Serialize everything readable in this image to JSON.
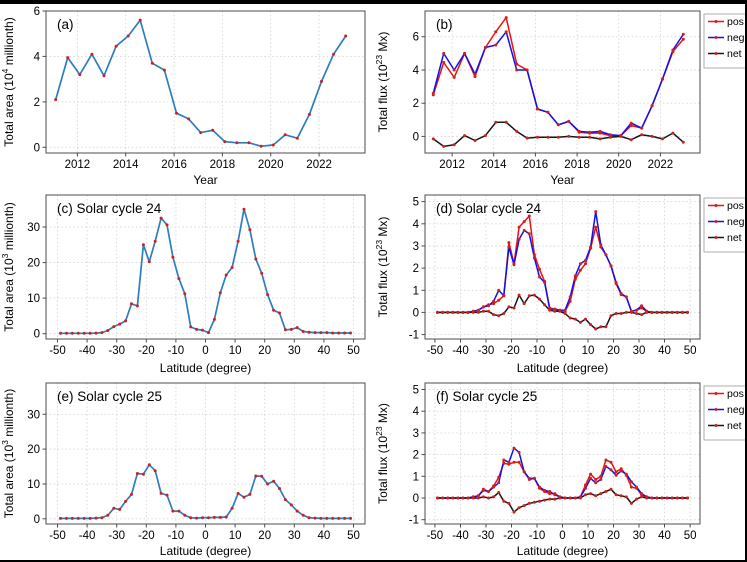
{
  "figure": {
    "description": "Six-panel solar activity figure: total sunspot area and total magnetic flux versus year and versus latitude for solar cycles 24 and 25",
    "background": "#ffffff",
    "border_color": "#000000"
  },
  "colors": {
    "area_line": "#2e7dbe",
    "pos": "#ee1111",
    "neg": "#1111ee",
    "net": "#161616",
    "marker": "#cf1f1f",
    "grid": "#d6d6d6",
    "spine": "#4d4d4d",
    "text": "#000000",
    "legend_border": "#999999"
  },
  "chart_data": [
    {
      "id": "a",
      "type": "line",
      "title": "(a)",
      "xlabel": "Year",
      "ylabel_parts": [
        {
          "text": "Total area (10"
        },
        {
          "text": "4",
          "sup": true
        },
        {
          "text": " millionth)"
        }
      ],
      "xlim": [
        2010.7,
        2023.9
      ],
      "ylim": [
        -0.25,
        6.0
      ],
      "xticks": [
        2012,
        2014,
        2016,
        2018,
        2020,
        2022
      ],
      "xtick_labels": [
        "2012",
        "2014",
        "2016",
        "2018",
        "2020",
        "2022"
      ],
      "yticks": [
        0,
        2,
        4,
        6
      ],
      "ytick_labels": [
        "0",
        "2",
        "4",
        "6"
      ],
      "legend": false,
      "x": [
        2011.1,
        2011.6,
        2012.1,
        2012.6,
        2013.1,
        2013.6,
        2014.1,
        2014.6,
        2015.1,
        2015.6,
        2016.1,
        2016.6,
        2017.1,
        2017.6,
        2018.1,
        2018.6,
        2019.1,
        2019.6,
        2020.1,
        2020.6,
        2021.1,
        2021.6,
        2022.1,
        2022.6,
        2023.1
      ],
      "series": [
        {
          "name": "area",
          "color": "#2e7dbe",
          "width": 1.7,
          "values": [
            2.1,
            3.95,
            3.2,
            4.1,
            3.15,
            4.45,
            4.9,
            5.6,
            3.7,
            3.4,
            1.5,
            1.25,
            0.65,
            0.75,
            0.25,
            0.2,
            0.2,
            0.05,
            0.1,
            0.55,
            0.4,
            1.45,
            2.9,
            4.1,
            4.9
          ]
        }
      ]
    },
    {
      "id": "b",
      "type": "line",
      "title": "(b)",
      "xlabel": "Year",
      "ylabel_parts": [
        {
          "text": "Total flux (10"
        },
        {
          "text": "23",
          "sup": true
        },
        {
          "text": " Mx)"
        }
      ],
      "xlim": [
        2010.7,
        2023.9
      ],
      "ylim": [
        -1.0,
        7.55
      ],
      "xticks": [
        2012,
        2014,
        2016,
        2018,
        2020,
        2022
      ],
      "xtick_labels": [
        "2012",
        "2014",
        "2016",
        "2018",
        "2020",
        "2022"
      ],
      "yticks": [
        0,
        2,
        4,
        6
      ],
      "ytick_labels": [
        "0",
        "2",
        "4",
        "6"
      ],
      "legend": true,
      "x": [
        2011.1,
        2011.6,
        2012.1,
        2012.6,
        2013.1,
        2013.6,
        2014.1,
        2014.6,
        2015.1,
        2015.6,
        2016.1,
        2016.6,
        2017.1,
        2017.6,
        2018.1,
        2018.6,
        2019.1,
        2019.6,
        2020.1,
        2020.6,
        2021.1,
        2021.6,
        2022.1,
        2022.6,
        2023.1
      ],
      "series": [
        {
          "name": "pos",
          "color": "#ee1111",
          "width": 1.5,
          "values": [
            2.5,
            4.45,
            3.55,
            5.0,
            3.6,
            5.35,
            6.3,
            7.15,
            4.35,
            4.0,
            1.65,
            1.45,
            0.7,
            0.9,
            0.25,
            0.2,
            0.2,
            0.05,
            0.05,
            0.65,
            0.5,
            1.85,
            3.45,
            5.1,
            5.85
          ]
        },
        {
          "name": "neg",
          "color": "#1111ee",
          "width": 1.5,
          "values": [
            2.6,
            5.0,
            4.0,
            5.0,
            3.75,
            5.35,
            5.5,
            6.3,
            4.0,
            4.0,
            1.65,
            1.45,
            0.7,
            0.9,
            0.3,
            0.25,
            0.3,
            0.1,
            0.05,
            0.8,
            0.5,
            1.85,
            3.45,
            5.2,
            6.15
          ]
        },
        {
          "name": "net",
          "color": "#161616",
          "width": 1.5,
          "values": [
            -0.15,
            -0.6,
            -0.5,
            0.05,
            -0.25,
            0.05,
            0.85,
            0.85,
            0.3,
            -0.1,
            -0.05,
            -0.05,
            -0.05,
            0.0,
            -0.05,
            -0.05,
            -0.15,
            -0.05,
            0.0,
            -0.2,
            0.1,
            0.0,
            -0.15,
            0.2,
            -0.35
          ]
        }
      ]
    },
    {
      "id": "c",
      "type": "line",
      "title": "(c) Solar cycle 24",
      "xlabel": "Latitude (degree)",
      "ylabel_parts": [
        {
          "text": "Total area (10"
        },
        {
          "text": "3",
          "sup": true
        },
        {
          "text": " millionth)"
        }
      ],
      "xlim": [
        -53.9,
        53.9
      ],
      "ylim": [
        -1.5,
        39
      ],
      "xticks": [
        -50,
        -40,
        -30,
        -20,
        -10,
        0,
        10,
        20,
        30,
        40,
        50
      ],
      "xtick_labels": [
        "-50",
        "-40",
        "-30",
        "-20",
        "-10",
        "0",
        "10",
        "20",
        "30",
        "40",
        "50"
      ],
      "yticks": [
        0,
        10,
        20,
        30
      ],
      "ytick_labels": [
        "0",
        "10",
        "20",
        "30"
      ],
      "legend": false,
      "x": [
        -49,
        -47,
        -45,
        -43,
        -41,
        -39,
        -37,
        -35,
        -33,
        -31,
        -29,
        -27,
        -25,
        -23,
        -21,
        -19,
        -17,
        -15,
        -13,
        -11,
        -9,
        -7,
        -5,
        -3,
        -1,
        1,
        3,
        5,
        7,
        9,
        11,
        13,
        15,
        17,
        19,
        21,
        23,
        25,
        27,
        29,
        31,
        33,
        35,
        37,
        39,
        41,
        43,
        45,
        47,
        49
      ],
      "series": [
        {
          "name": "area",
          "color": "#2e7dbe",
          "width": 1.7,
          "values": [
            0.1,
            0.1,
            0.1,
            0.1,
            0.1,
            0.1,
            0.15,
            0.3,
            0.9,
            2.0,
            2.7,
            3.6,
            8.4,
            7.8,
            25.0,
            20.2,
            26.0,
            32.5,
            30.6,
            21.5,
            15.5,
            11.2,
            1.9,
            1.2,
            1.0,
            0.3,
            4.0,
            11.5,
            16.5,
            18.6,
            26.0,
            35.0,
            29.2,
            21.0,
            17.0,
            11.0,
            6.6,
            5.8,
            1.1,
            1.2,
            1.7,
            0.6,
            0.4,
            0.3,
            0.3,
            0.3,
            0.2,
            0.2,
            0.2,
            0.2
          ]
        }
      ]
    },
    {
      "id": "d",
      "type": "line",
      "title": "(d) Solar cycle 24",
      "xlabel": "Latitude (degree)",
      "ylabel_parts": [
        {
          "text": "Total flux (10"
        },
        {
          "text": "23",
          "sup": true
        },
        {
          "text": " Mx)"
        }
      ],
      "xlim": [
        -53.9,
        53.9
      ],
      "ylim": [
        -1.2,
        5.3
      ],
      "xticks": [
        -50,
        -40,
        -30,
        -20,
        -10,
        0,
        10,
        20,
        30,
        40,
        50
      ],
      "xtick_labels": [
        "-50",
        "-40",
        "-30",
        "-20",
        "-10",
        "0",
        "10",
        "20",
        "30",
        "40",
        "50"
      ],
      "yticks": [
        -1,
        0,
        1,
        2,
        3,
        4,
        5
      ],
      "ytick_labels": [
        "-1",
        "0",
        "1",
        "2",
        "3",
        "4",
        "5"
      ],
      "legend": true,
      "x": [
        -49,
        -47,
        -45,
        -43,
        -41,
        -39,
        -37,
        -35,
        -33,
        -31,
        -29,
        -27,
        -25,
        -23,
        -21,
        -19,
        -17,
        -15,
        -13,
        -11,
        -9,
        -7,
        -5,
        -3,
        -1,
        1,
        3,
        5,
        7,
        9,
        11,
        13,
        15,
        17,
        19,
        21,
        23,
        25,
        27,
        29,
        31,
        33,
        35,
        37,
        39,
        41,
        43,
        45,
        47,
        49
      ],
      "series": [
        {
          "name": "pos",
          "color": "#ee1111",
          "width": 1.5,
          "values": [
            0,
            0,
            0,
            0,
            0,
            0,
            0,
            0.05,
            0.1,
            0.25,
            0.35,
            0.4,
            0.55,
            0.75,
            3.15,
            2.2,
            3.85,
            4.1,
            4.35,
            2.6,
            1.95,
            1.4,
            0.2,
            0.15,
            0.1,
            0.05,
            0.5,
            1.5,
            1.9,
            2.2,
            2.9,
            3.85,
            2.95,
            2.6,
            2.1,
            1.3,
            0.8,
            0.7,
            0.05,
            0.1,
            0.2,
            0.05,
            0,
            0,
            0,
            0,
            0,
            0,
            0,
            0
          ]
        },
        {
          "name": "neg",
          "color": "#1111ee",
          "width": 1.5,
          "values": [
            0,
            0,
            0,
            0,
            0,
            0,
            0,
            0.05,
            0.1,
            0.25,
            0.3,
            0.5,
            1.0,
            0.75,
            2.95,
            2.15,
            3.3,
            3.7,
            3.55,
            2.45,
            1.6,
            1.35,
            0.15,
            0.15,
            0.1,
            0.1,
            0.7,
            1.65,
            2.2,
            2.35,
            2.95,
            4.55,
            3.05,
            2.6,
            2.1,
            1.35,
            0.85,
            0.7,
            0.05,
            0.1,
            0.3,
            0.05,
            0,
            0,
            0,
            0,
            0,
            0,
            0,
            0
          ]
        },
        {
          "name": "net",
          "color": "#161616",
          "width": 1.5,
          "values": [
            0,
            0,
            0,
            0,
            0,
            0,
            0,
            0.0,
            0.0,
            0.05,
            0.05,
            -0.1,
            -0.15,
            -0.05,
            0.25,
            0.2,
            0.78,
            0.4,
            0.75,
            0.78,
            0.6,
            0.35,
            0.1,
            0.05,
            0.05,
            -0.05,
            -0.25,
            -0.3,
            -0.45,
            -0.3,
            -0.55,
            -0.75,
            -0.65,
            -0.65,
            -0.15,
            -0.05,
            -0.05,
            0.0,
            0.0,
            -0.05,
            -0.1,
            0.0,
            0,
            0,
            0,
            0,
            0,
            0,
            0,
            0
          ]
        }
      ]
    },
    {
      "id": "e",
      "type": "line",
      "title": "(e) Solar cycle 25",
      "xlabel": "Latitude (degree)",
      "ylabel_parts": [
        {
          "text": "Total area (10"
        },
        {
          "text": "3",
          "sup": true
        },
        {
          "text": " millionth)"
        }
      ],
      "xlim": [
        -53.9,
        53.9
      ],
      "ylim": [
        -1.5,
        39
      ],
      "xticks": [
        -50,
        -40,
        -30,
        -20,
        -10,
        0,
        10,
        20,
        30,
        40,
        50
      ],
      "xtick_labels": [
        "-50",
        "-40",
        "-30",
        "-20",
        "-10",
        "0",
        "10",
        "20",
        "30",
        "40",
        "50"
      ],
      "yticks": [
        0,
        10,
        20,
        30
      ],
      "ytick_labels": [
        "0",
        "10",
        "20",
        "30"
      ],
      "legend": false,
      "x": [
        -49,
        -47,
        -45,
        -43,
        -41,
        -39,
        -37,
        -35,
        -33,
        -31,
        -29,
        -27,
        -25,
        -23,
        -21,
        -19,
        -17,
        -15,
        -13,
        -11,
        -9,
        -7,
        -5,
        -3,
        -1,
        1,
        3,
        5,
        7,
        9,
        11,
        13,
        15,
        17,
        19,
        21,
        23,
        25,
        27,
        29,
        31,
        33,
        35,
        37,
        39,
        41,
        43,
        45,
        47,
        49
      ],
      "series": [
        {
          "name": "area",
          "color": "#2e7dbe",
          "width": 1.7,
          "values": [
            0.1,
            0.1,
            0.1,
            0.1,
            0.1,
            0.1,
            0.2,
            0.3,
            1.0,
            3.0,
            2.7,
            5.0,
            7.0,
            13.0,
            12.8,
            15.5,
            13.8,
            7.3,
            6.8,
            2.2,
            2.2,
            1.0,
            0.3,
            0.2,
            0.3,
            0.3,
            0.4,
            0.4,
            0.5,
            3.0,
            7.3,
            6.2,
            7.0,
            12.3,
            12.2,
            10.0,
            10.8,
            8.7,
            5.5,
            4.0,
            2.2,
            1.0,
            0.3,
            0.2,
            0.1,
            0.1,
            0.1,
            0.1,
            0.1,
            0.1
          ]
        }
      ]
    },
    {
      "id": "f",
      "type": "line",
      "title": "(f) Solar cycle 25",
      "xlabel": "Latitude (degree)",
      "ylabel_parts": [
        {
          "text": "Total flux (10"
        },
        {
          "text": "23",
          "sup": true
        },
        {
          "text": " Mx)"
        }
      ],
      "xlim": [
        -53.9,
        53.9
      ],
      "ylim": [
        -1.2,
        5.3
      ],
      "xticks": [
        -50,
        -40,
        -30,
        -20,
        -10,
        0,
        10,
        20,
        30,
        40,
        50
      ],
      "xtick_labels": [
        "-50",
        "-40",
        "-30",
        "-20",
        "-10",
        "0",
        "10",
        "20",
        "30",
        "40",
        "50"
      ],
      "yticks": [
        -1,
        0,
        1,
        2,
        3,
        4,
        5
      ],
      "ytick_labels": [
        "-1",
        "0",
        "1",
        "2",
        "3",
        "4",
        "5"
      ],
      "legend": true,
      "x": [
        -49,
        -47,
        -45,
        -43,
        -41,
        -39,
        -37,
        -35,
        -33,
        -31,
        -29,
        -27,
        -25,
        -23,
        -21,
        -19,
        -17,
        -15,
        -13,
        -11,
        -9,
        -7,
        -5,
        -3,
        -1,
        1,
        3,
        5,
        7,
        9,
        11,
        13,
        15,
        17,
        19,
        21,
        23,
        25,
        27,
        29,
        31,
        33,
        35,
        37,
        39,
        41,
        43,
        45,
        47,
        49
      ],
      "series": [
        {
          "name": "pos",
          "color": "#ee1111",
          "width": 1.5,
          "values": [
            0,
            0,
            0,
            0,
            0,
            0,
            0,
            0.05,
            0.1,
            0.4,
            0.3,
            0.55,
            0.95,
            1.6,
            1.55,
            1.65,
            1.65,
            1.2,
            0.85,
            0.9,
            0.45,
            0.3,
            0.2,
            0.2,
            0.05,
            0.0,
            0.0,
            0.0,
            0.05,
            0.6,
            1.1,
            0.85,
            1.0,
            1.75,
            1.65,
            1.2,
            1.35,
            1.05,
            0.5,
            0.45,
            0.15,
            0.05,
            0,
            0,
            0,
            0,
            0,
            0,
            0,
            0
          ]
        },
        {
          "name": "neg",
          "color": "#1111ee",
          "width": 1.5,
          "values": [
            0,
            0,
            0,
            0,
            0,
            0,
            0,
            0.05,
            0.1,
            0.35,
            0.3,
            0.5,
            0.7,
            1.75,
            1.65,
            2.3,
            2.1,
            1.2,
            0.9,
            0.9,
            0.5,
            0.35,
            0.3,
            0.15,
            0.05,
            0.0,
            0.0,
            0.0,
            0.05,
            0.45,
            0.9,
            0.7,
            0.85,
            1.45,
            1.3,
            1.05,
            1.25,
            1.1,
            0.75,
            0.5,
            0.2,
            0.05,
            0,
            0,
            0,
            0,
            0,
            0,
            0,
            0
          ]
        },
        {
          "name": "net",
          "color": "#161616",
          "width": 1.5,
          "values": [
            0,
            0,
            0,
            0,
            0,
            0,
            0,
            0.0,
            0.0,
            0.05,
            0.0,
            0.05,
            0.25,
            -0.15,
            -0.25,
            -0.65,
            -0.45,
            -0.35,
            -0.25,
            -0.2,
            -0.15,
            -0.1,
            -0.05,
            -0.05,
            0.0,
            0.0,
            0.0,
            0.0,
            0.0,
            0.15,
            0.2,
            0.1,
            0.2,
            0.3,
            0.4,
            0.15,
            0.1,
            0.05,
            -0.25,
            -0.05,
            0.05,
            0.0,
            0,
            0,
            0,
            0,
            0,
            0,
            0,
            0
          ]
        }
      ]
    }
  ]
}
